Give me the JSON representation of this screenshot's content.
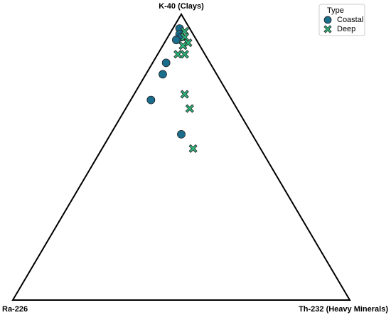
{
  "chart_data": {
    "type": "ternary",
    "corners": [
      "K-40 (Clays)",
      "Ra-226",
      "Th-232 (Heavy Minerals)"
    ],
    "legend_title": "Type",
    "legend": "upper right",
    "series": [
      {
        "name": "Coastal",
        "color": "#1b6d8c",
        "marker": "circle",
        "k": [
          95,
          93,
          92,
          91,
          83,
          79,
          70,
          58
        ],
        "ra": [
          3,
          4,
          4,
          6,
          13,
          16,
          24,
          21
        ],
        "th": [
          2,
          3,
          4,
          3,
          4,
          5,
          6,
          21
        ]
      },
      {
        "name": "Deep",
        "color": "#2db77b",
        "marker": "x",
        "k": [
          94,
          92,
          90,
          89,
          86,
          86,
          72,
          67,
          53
        ],
        "ra": [
          2,
          3,
          3,
          5,
          8,
          6,
          13,
          14,
          20
        ],
        "th": [
          4,
          5,
          7,
          6,
          6,
          8,
          15,
          19,
          27
        ]
      }
    ]
  }
}
